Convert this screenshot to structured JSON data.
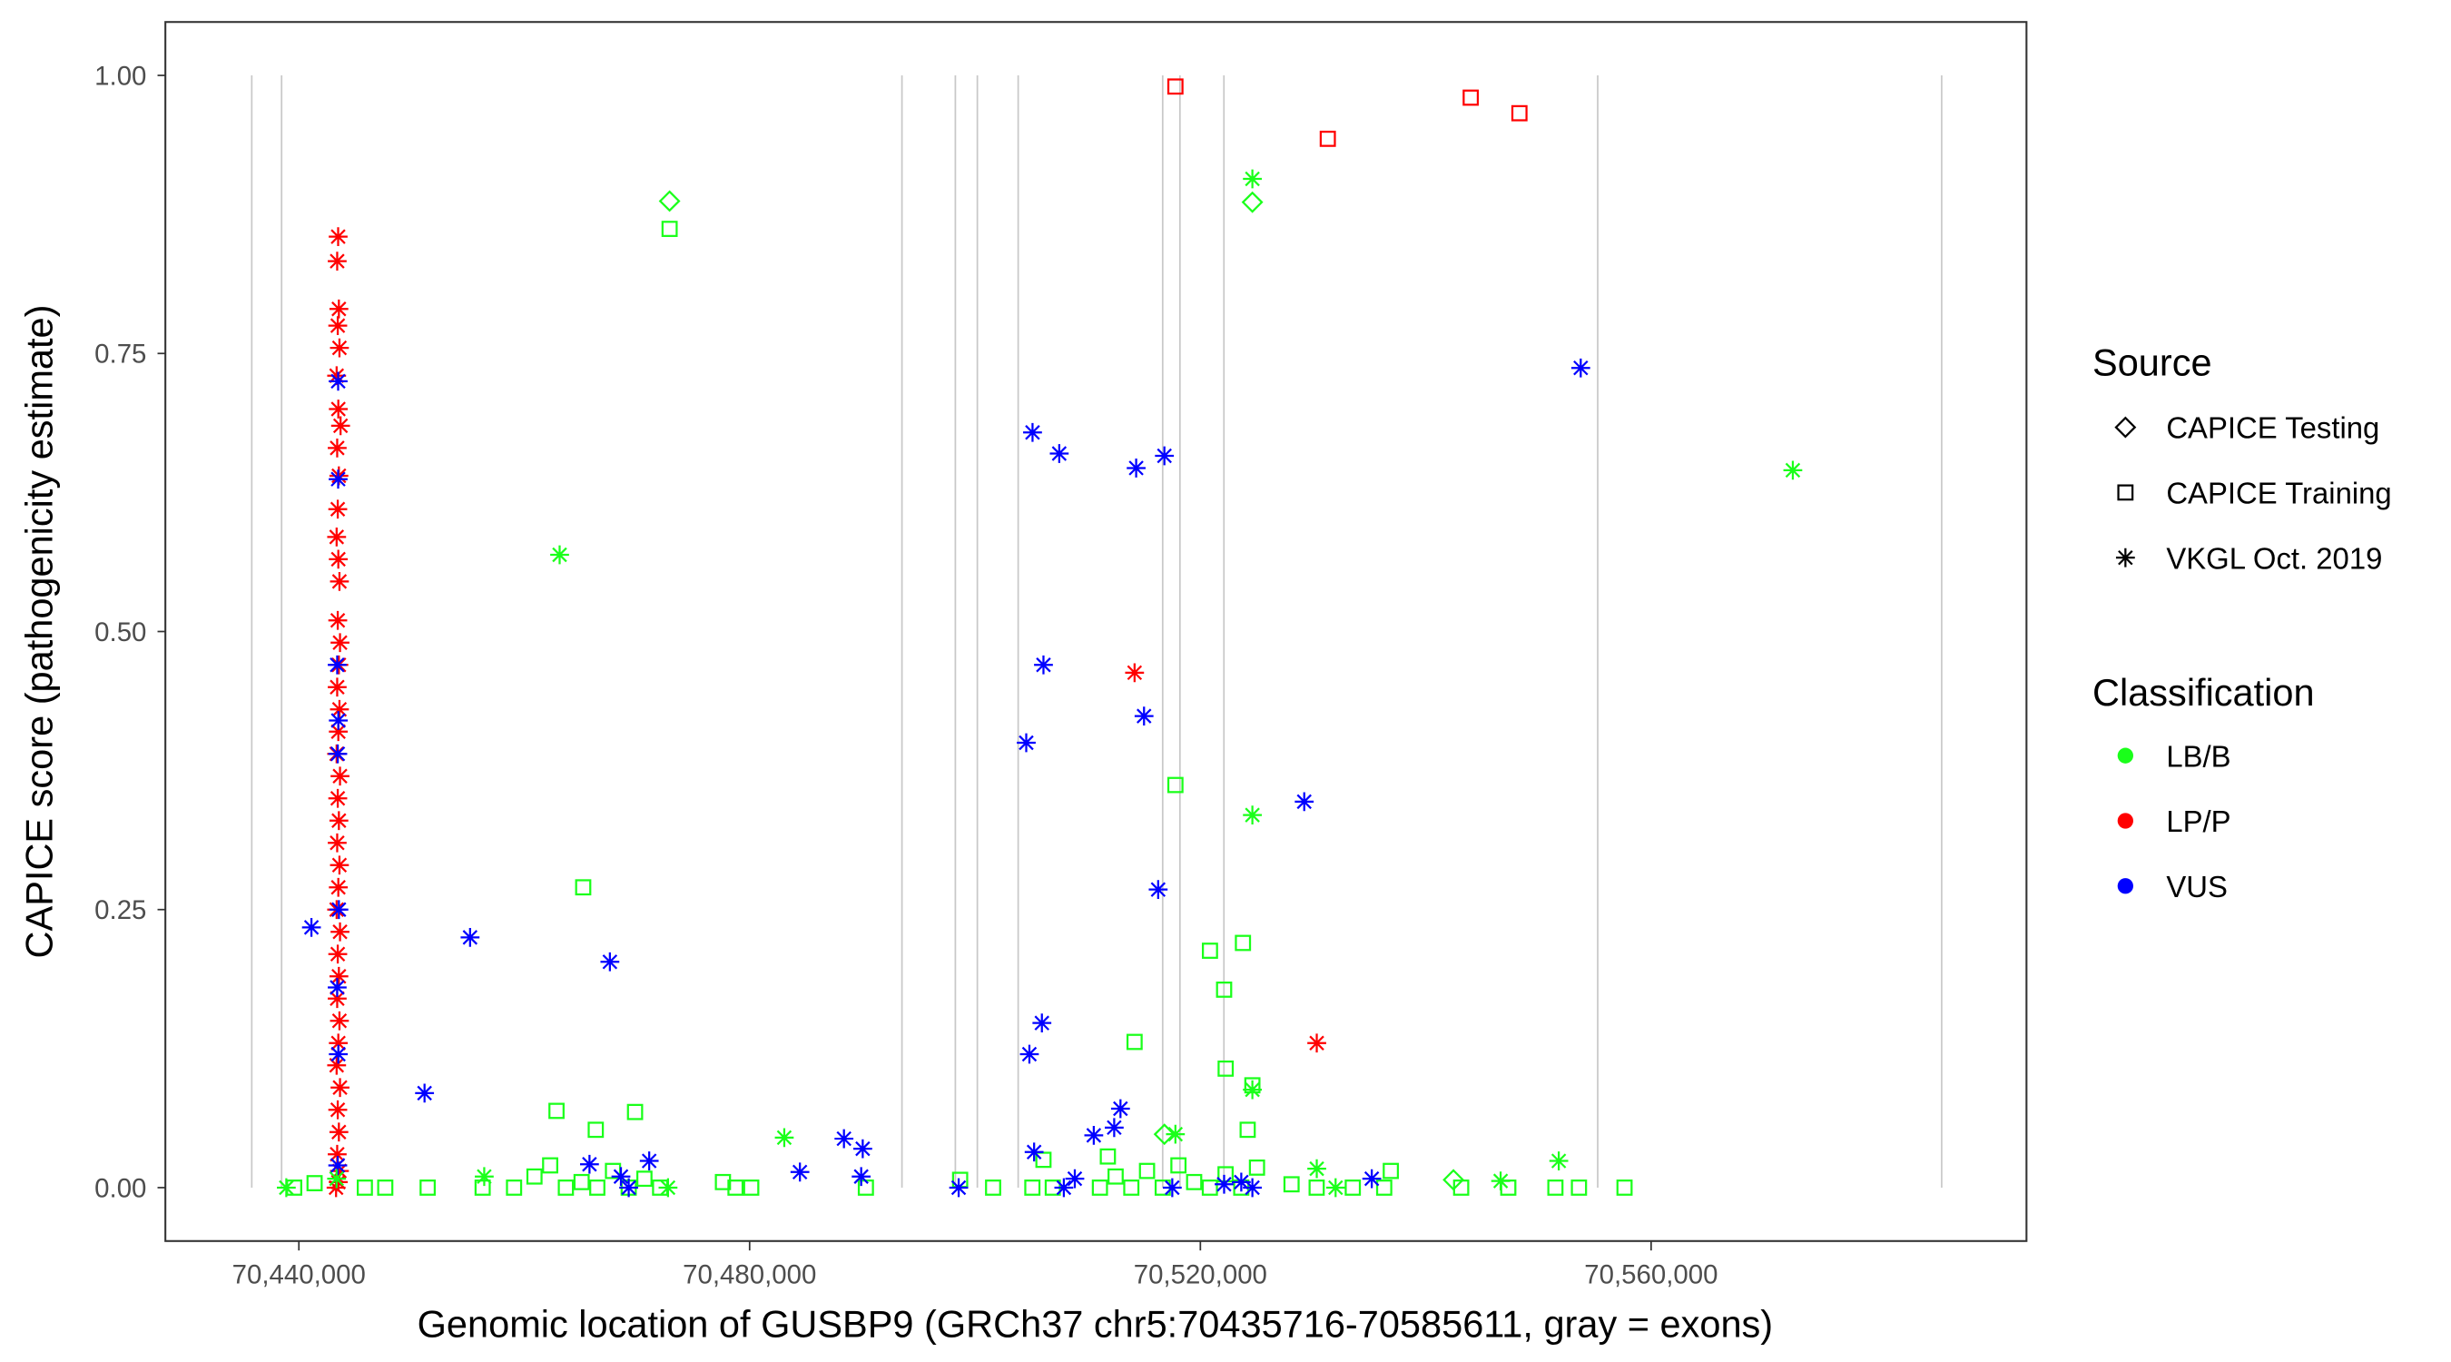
{
  "chart_data": {
    "type": "scatter",
    "xlabel": "Genomic location of GUSBP9 (GRCh37 chr5:70435716-70585611, gray = exons)",
    "ylabel": "CAPICE score (pathogenicity estimate)",
    "xlim": [
      70428000,
      70593000
    ],
    "ylim": [
      -0.045,
      1.045
    ],
    "xticks": [
      70440000,
      70480000,
      70520000,
      70560000
    ],
    "xtick_labels": [
      "70,440,000",
      "70,480,000",
      "70,520,000",
      "70,560,000"
    ],
    "yticks": [
      0,
      0.25,
      0.5,
      0.75,
      1
    ],
    "ytick_labels": [
      "0.00",
      "0.25",
      "0.50",
      "0.75",
      "1.00"
    ],
    "grid": false,
    "exons": [
      70435819,
      70438467,
      70493519,
      70498258,
      70500209,
      70503833,
      70516655,
      70518188,
      70522091,
      70555261,
      70585784
    ],
    "legend": {
      "placement": "right",
      "source_title": "Source",
      "source_items": [
        {
          "key": "testing",
          "label": "CAPICE Testing",
          "shape": "diamond"
        },
        {
          "key": "training",
          "label": "CAPICE Training",
          "shape": "square"
        },
        {
          "key": "vkgl",
          "label": "VKGL Oct. 2019",
          "shape": "asterisk"
        }
      ],
      "class_title": "Classification",
      "class_items": [
        {
          "key": "LB/B",
          "label": "LB/B",
          "color": "#1aff1a"
        },
        {
          "key": "LP/P",
          "label": "LP/P",
          "color": "#ff0000"
        },
        {
          "key": "VUS",
          "label": "VUS",
          "color": "#0000ff"
        }
      ]
    },
    "points": [
      [
        70472898,
        0.887,
        "testing",
        "LB/B"
      ],
      [
        70524616,
        0.886,
        "testing",
        "LB/B"
      ],
      [
        70516809,
        0.048,
        "testing",
        "LB/B"
      ],
      [
        70542459,
        0.007,
        "testing",
        "LB/B"
      ],
      [
        70517785,
        0.99,
        "training",
        "LP/P"
      ],
      [
        70531307,
        0.943,
        "training",
        "LP/P"
      ],
      [
        70543992,
        0.98,
        "training",
        "LP/P"
      ],
      [
        70548314,
        0.966,
        "training",
        "LP/P"
      ],
      [
        70472898,
        0.862,
        "training",
        "LB/B"
      ],
      [
        70465232,
        0.27,
        "training",
        "LB/B"
      ],
      [
        70462862,
        0.069,
        "training",
        "LB/B"
      ],
      [
        70469832,
        0.068,
        "training",
        "LB/B"
      ],
      [
        70466347,
        0.052,
        "training",
        "LB/B"
      ],
      [
        70517785,
        0.362,
        "training",
        "LB/B"
      ],
      [
        70520852,
        0.213,
        "training",
        "LB/B"
      ],
      [
        70523779,
        0.22,
        "training",
        "LB/B"
      ],
      [
        70522107,
        0.178,
        "training",
        "LB/B"
      ],
      [
        70514161,
        0.131,
        "training",
        "LB/B"
      ],
      [
        70522246,
        0.107,
        "training",
        "LB/B"
      ],
      [
        70524616,
        0.092,
        "training",
        "LB/B"
      ],
      [
        70524198,
        0.052,
        "training",
        "LB/B"
      ],
      [
        70506076,
        0.025,
        "training",
        "LB/B"
      ],
      [
        70511791,
        0.028,
        "training",
        "LB/B"
      ],
      [
        70439582,
        0,
        "training",
        "LB/B"
      ],
      [
        70441394,
        0.004,
        "training",
        "LB/B"
      ],
      [
        70445854,
        0,
        "training",
        "LB/B"
      ],
      [
        70447666,
        0,
        "training",
        "LB/B"
      ],
      [
        70451429,
        0,
        "training",
        "LB/B"
      ],
      [
        70456307,
        0,
        "training",
        "LB/B"
      ],
      [
        70459095,
        0,
        "training",
        "LB/B"
      ],
      [
        70460907,
        0.01,
        "training",
        "LB/B"
      ],
      [
        70462300,
        0.02,
        "training",
        "LB/B"
      ],
      [
        70463694,
        0,
        "training",
        "LB/B"
      ],
      [
        70465088,
        0.005,
        "training",
        "LB/B"
      ],
      [
        70466482,
        0,
        "training",
        "LB/B"
      ],
      [
        70467876,
        0.015,
        "training",
        "LB/B"
      ],
      [
        70469270,
        0,
        "training",
        "LB/B"
      ],
      [
        70470664,
        0.008,
        "training",
        "LB/B"
      ],
      [
        70472058,
        0,
        "training",
        "LB/B"
      ],
      [
        70477633,
        0.005,
        "training",
        "LB/B"
      ],
      [
        70478748,
        0,
        "training",
        "LB/B"
      ],
      [
        70480142,
        0,
        "training",
        "LB/B"
      ],
      [
        70490317,
        0,
        "training",
        "LB/B"
      ],
      [
        70498680,
        0.007,
        "training",
        "LB/B"
      ],
      [
        70501607,
        0,
        "training",
        "LB/B"
      ],
      [
        70505091,
        0,
        "training",
        "LB/B"
      ],
      [
        70506903,
        0,
        "training",
        "LB/B"
      ],
      [
        70511085,
        0,
        "training",
        "LB/B"
      ],
      [
        70512479,
        0.01,
        "training",
        "LB/B"
      ],
      [
        70513873,
        0,
        "training",
        "LB/B"
      ],
      [
        70515266,
        0.015,
        "training",
        "LB/B"
      ],
      [
        70516660,
        0,
        "training",
        "LB/B"
      ],
      [
        70518054,
        0.02,
        "training",
        "LB/B"
      ],
      [
        70519448,
        0.005,
        "training",
        "LB/B"
      ],
      [
        70520842,
        0,
        "training",
        "LB/B"
      ],
      [
        70522236,
        0.012,
        "training",
        "LB/B"
      ],
      [
        70523630,
        0,
        "training",
        "LB/B"
      ],
      [
        70525024,
        0.018,
        "training",
        "LB/B"
      ],
      [
        70528090,
        0.003,
        "training",
        "LB/B"
      ],
      [
        70530320,
        0,
        "training",
        "LB/B"
      ],
      [
        70533526,
        0,
        "training",
        "LB/B"
      ],
      [
        70536313,
        0,
        "training",
        "LB/B"
      ],
      [
        70536900,
        0.015,
        "training",
        "LB/B"
      ],
      [
        70543143,
        0,
        "training",
        "LB/B"
      ],
      [
        70547325,
        0,
        "training",
        "LB/B"
      ],
      [
        70551506,
        0,
        "training",
        "LB/B"
      ],
      [
        70553597,
        0,
        "training",
        "LB/B"
      ],
      [
        70557639,
        0,
        "training",
        "LB/B"
      ],
      [
        70443485,
        0.855,
        "vkgl",
        "LP/P"
      ],
      [
        70443400,
        0.833,
        "vkgl",
        "LP/P"
      ],
      [
        70443550,
        0.79,
        "vkgl",
        "LP/P"
      ],
      [
        70443450,
        0.775,
        "vkgl",
        "LP/P"
      ],
      [
        70443600,
        0.755,
        "vkgl",
        "LP/P"
      ],
      [
        70443350,
        0.73,
        "vkgl",
        "LP/P"
      ],
      [
        70443500,
        0.7,
        "vkgl",
        "LP/P"
      ],
      [
        70443700,
        0.685,
        "vkgl",
        "LP/P"
      ],
      [
        70443400,
        0.665,
        "vkgl",
        "LP/P"
      ],
      [
        70443550,
        0.64,
        "vkgl",
        "LP/P"
      ],
      [
        70443450,
        0.61,
        "vkgl",
        "LP/P"
      ],
      [
        70443350,
        0.585,
        "vkgl",
        "LP/P"
      ],
      [
        70443500,
        0.565,
        "vkgl",
        "LP/P"
      ],
      [
        70443600,
        0.545,
        "vkgl",
        "LP/P"
      ],
      [
        70443450,
        0.51,
        "vkgl",
        "LP/P"
      ],
      [
        70443650,
        0.49,
        "vkgl",
        "LP/P"
      ],
      [
        70443550,
        0.47,
        "vkgl",
        "LP/P"
      ],
      [
        70443400,
        0.45,
        "vkgl",
        "LP/P"
      ],
      [
        70443600,
        0.43,
        "vkgl",
        "LP/P"
      ],
      [
        70443500,
        0.41,
        "vkgl",
        "LP/P"
      ],
      [
        70443350,
        0.39,
        "vkgl",
        "LP/P"
      ],
      [
        70443650,
        0.37,
        "vkgl",
        "LP/P"
      ],
      [
        70443450,
        0.35,
        "vkgl",
        "LP/P"
      ],
      [
        70443550,
        0.33,
        "vkgl",
        "LP/P"
      ],
      [
        70443400,
        0.31,
        "vkgl",
        "LP/P"
      ],
      [
        70443600,
        0.29,
        "vkgl",
        "LP/P"
      ],
      [
        70443500,
        0.27,
        "vkgl",
        "LP/P"
      ],
      [
        70443350,
        0.25,
        "vkgl",
        "LP/P"
      ],
      [
        70443650,
        0.23,
        "vkgl",
        "LP/P"
      ],
      [
        70443450,
        0.21,
        "vkgl",
        "LP/P"
      ],
      [
        70443550,
        0.19,
        "vkgl",
        "LP/P"
      ],
      [
        70443400,
        0.17,
        "vkgl",
        "LP/P"
      ],
      [
        70443600,
        0.15,
        "vkgl",
        "LP/P"
      ],
      [
        70443500,
        0.13,
        "vkgl",
        "LP/P"
      ],
      [
        70443350,
        0.11,
        "vkgl",
        "LP/P"
      ],
      [
        70443650,
        0.09,
        "vkgl",
        "LP/P"
      ],
      [
        70443450,
        0.07,
        "vkgl",
        "LP/P"
      ],
      [
        70443550,
        0.05,
        "vkgl",
        "LP/P"
      ],
      [
        70443400,
        0.03,
        "vkgl",
        "LP/P"
      ],
      [
        70443600,
        0.015,
        "vkgl",
        "LP/P"
      ],
      [
        70443500,
        0.005,
        "vkgl",
        "LP/P"
      ],
      [
        70443300,
        0,
        "vkgl",
        "LP/P"
      ],
      [
        70514161,
        0.463,
        "vkgl",
        "LP/P"
      ],
      [
        70530329,
        0.13,
        "vkgl",
        "LP/P"
      ],
      [
        70443485,
        0.725,
        "vkgl",
        "VUS"
      ],
      [
        70443485,
        0.637,
        "vkgl",
        "VUS"
      ],
      [
        70443400,
        0.47,
        "vkgl",
        "VUS"
      ],
      [
        70443500,
        0.42,
        "vkgl",
        "VUS"
      ],
      [
        70443450,
        0.39,
        "vkgl",
        "VUS"
      ],
      [
        70443550,
        0.25,
        "vkgl",
        "VUS"
      ],
      [
        70443400,
        0.18,
        "vkgl",
        "VUS"
      ],
      [
        70443500,
        0.12,
        "vkgl",
        "VUS"
      ],
      [
        70443450,
        0.02,
        "vkgl",
        "VUS"
      ],
      [
        70441115,
        0.234,
        "vkgl",
        "VUS"
      ],
      [
        70455192,
        0.225,
        "vkgl",
        "VUS"
      ],
      [
        70467600,
        0.203,
        "vkgl",
        "VUS"
      ],
      [
        70451152,
        0.085,
        "vkgl",
        "VUS"
      ],
      [
        70505106,
        0.679,
        "vkgl",
        "VUS"
      ],
      [
        70507476,
        0.66,
        "vkgl",
        "VUS"
      ],
      [
        70514302,
        0.647,
        "vkgl",
        "VUS"
      ],
      [
        70516809,
        0.658,
        "vkgl",
        "VUS"
      ],
      [
        70553754,
        0.737,
        "vkgl",
        "VUS"
      ],
      [
        70506076,
        0.47,
        "vkgl",
        "VUS"
      ],
      [
        70504548,
        0.4,
        "vkgl",
        "VUS"
      ],
      [
        70515000,
        0.424,
        "vkgl",
        "VUS"
      ],
      [
        70516255,
        0.268,
        "vkgl",
        "VUS"
      ],
      [
        70529217,
        0.347,
        "vkgl",
        "VUS"
      ],
      [
        70505937,
        0.148,
        "vkgl",
        "VUS"
      ],
      [
        70504827,
        0.12,
        "vkgl",
        "VUS"
      ],
      [
        70512910,
        0.071,
        "vkgl",
        "VUS"
      ],
      [
        70512353,
        0.054,
        "vkgl",
        "VUS"
      ],
      [
        70510540,
        0.047,
        "vkgl",
        "VUS"
      ],
      [
        70505246,
        0.032,
        "vkgl",
        "VUS"
      ],
      [
        70488372,
        0.044,
        "vkgl",
        "VUS"
      ],
      [
        70490037,
        0.035,
        "vkgl",
        "VUS"
      ],
      [
        70484463,
        0.014,
        "vkgl",
        "VUS"
      ],
      [
        70489900,
        0.01,
        "vkgl",
        "VUS"
      ],
      [
        70498551,
        0,
        "vkgl",
        "VUS"
      ],
      [
        70508857,
        0.008,
        "vkgl",
        "VUS"
      ],
      [
        70507883,
        0,
        "vkgl",
        "VUS"
      ],
      [
        70465789,
        0.021,
        "vkgl",
        "VUS"
      ],
      [
        70471089,
        0.024,
        "vkgl",
        "VUS"
      ],
      [
        70468580,
        0.01,
        "vkgl",
        "VUS"
      ],
      [
        70469270,
        0,
        "vkgl",
        "VUS"
      ],
      [
        70535210,
        0.008,
        "vkgl",
        "VUS"
      ],
      [
        70522107,
        0.003,
        "vkgl",
        "VUS"
      ],
      [
        70524616,
        0,
        "vkgl",
        "VUS"
      ],
      [
        70523630,
        0.005,
        "vkgl",
        "VUS"
      ],
      [
        70517506,
        0,
        "vkgl",
        "VUS"
      ],
      [
        70463140,
        0.569,
        "vkgl",
        "LB/B"
      ],
      [
        70524616,
        0.907,
        "vkgl",
        "LB/B"
      ],
      [
        70572575,
        0.645,
        "vkgl",
        "LB/B"
      ],
      [
        70524616,
        0.335,
        "vkgl",
        "LB/B"
      ],
      [
        70524616,
        0.088,
        "vkgl",
        "LB/B"
      ],
      [
        70483075,
        0.045,
        "vkgl",
        "LB/B"
      ],
      [
        70517785,
        0.048,
        "vkgl",
        "LB/B"
      ],
      [
        70551805,
        0.024,
        "vkgl",
        "LB/B"
      ],
      [
        70530329,
        0.017,
        "vkgl",
        "LB/B"
      ],
      [
        70456449,
        0.01,
        "vkgl",
        "LB/B"
      ],
      [
        70438885,
        0,
        "vkgl",
        "LB/B"
      ],
      [
        70546647,
        0.006,
        "vkgl",
        "LB/B"
      ],
      [
        70472758,
        0,
        "vkgl",
        "LB/B"
      ],
      [
        70532000,
        0,
        "vkgl",
        "LB/B"
      ],
      [
        70443345,
        0.008,
        "vkgl",
        "LB/B"
      ]
    ]
  }
}
